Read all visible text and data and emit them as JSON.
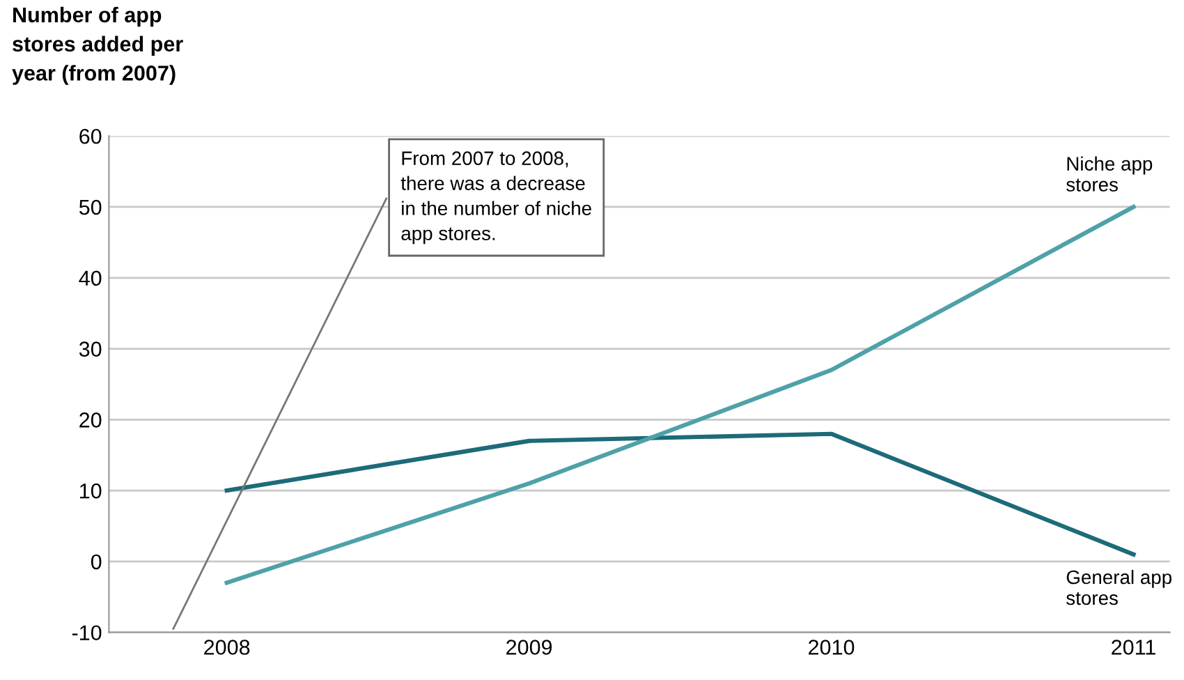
{
  "chart_data": {
    "type": "line",
    "ylabel": "Number of app\nstores added per\nyear (from 2007)",
    "categories": [
      "2008",
      "2009",
      "2010",
      "2011"
    ],
    "series": [
      {
        "name": "General app\nstores",
        "color": "#1d6b78",
        "values": [
          10,
          17,
          18,
          1
        ]
      },
      {
        "name": "Niche app\nstores",
        "color": "#4fa1a8",
        "values": [
          -3,
          11,
          27,
          50
        ]
      }
    ],
    "ylim": [
      -10,
      60
    ],
    "yticks": [
      -10,
      0,
      10,
      20,
      30,
      40,
      50,
      60
    ],
    "grid": "y",
    "legend": false,
    "marker": "none",
    "line_style": "solid",
    "annotations": [
      "From 2007 to 2008,\nthere was a decrease\nin the number of niche\napp stores."
    ]
  }
}
